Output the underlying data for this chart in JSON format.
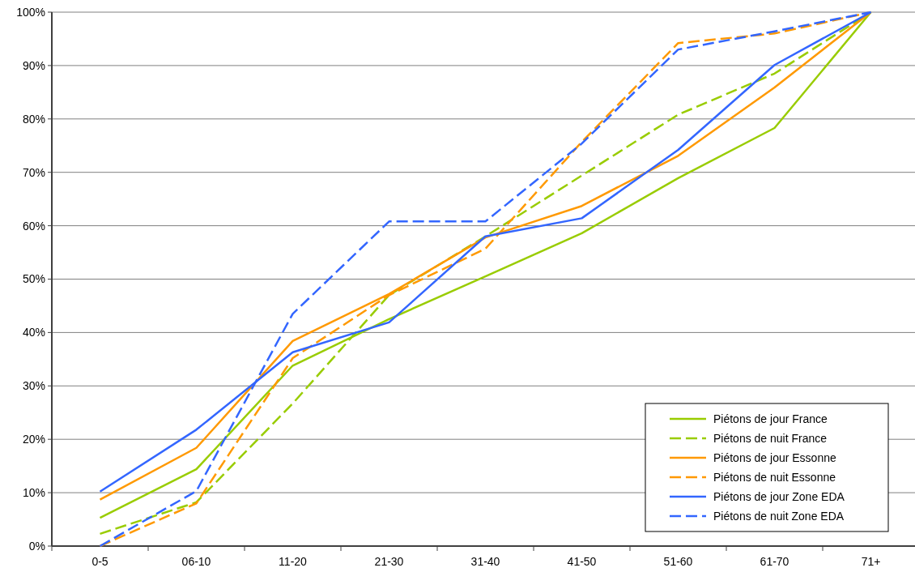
{
  "chart_data": {
    "type": "line",
    "categories": [
      "0-5",
      "06-10",
      "11-20",
      "21-30",
      "31-40",
      "41-50",
      "51-60",
      "61-70",
      "71+"
    ],
    "ylim": [
      0,
      100
    ],
    "yticks": [
      {
        "value": 0,
        "label": "0%"
      },
      {
        "value": 10,
        "label": "10%"
      },
      {
        "value": 20,
        "label": "20%"
      },
      {
        "value": 30,
        "label": "30%"
      },
      {
        "value": 40,
        "label": "40%"
      },
      {
        "value": 50,
        "label": "50%"
      },
      {
        "value": 60,
        "label": "60%"
      },
      {
        "value": 70,
        "label": "70%"
      },
      {
        "value": 80,
        "label": "80%"
      },
      {
        "value": 90,
        "label": "90%"
      },
      {
        "value": 100,
        "label": "100%"
      }
    ],
    "grid": "y",
    "legend": "bottom right",
    "marker": "none",
    "series": [
      {
        "name": "Piétons de jour France",
        "color": "#99cc00",
        "line_style": "solid",
        "values": [
          5.3,
          14.4,
          33.8,
          42.5,
          50.5,
          58.6,
          68.9,
          78.3,
          100
        ]
      },
      {
        "name": "Piétons de nuit France",
        "color": "#99cc00",
        "line_style": "dashed",
        "values": [
          2.3,
          8.2,
          26.7,
          47,
          58,
          69.4,
          80.8,
          88.5,
          100
        ]
      },
      {
        "name": "Piétons de jour Essonne",
        "color": "#ff9900",
        "line_style": "solid",
        "values": [
          8.7,
          18.4,
          38.4,
          47.2,
          57.8,
          63.7,
          73.1,
          85.9,
          100
        ]
      },
      {
        "name": "Piétons de nuit Essonne",
        "color": "#ff9900",
        "line_style": "dashed",
        "values": [
          0,
          8,
          35.2,
          47,
          55.7,
          75.7,
          94.2,
          96,
          100
        ]
      },
      {
        "name": "Piétons de jour Zone EDA",
        "color": "#3366ff",
        "line_style": "solid",
        "values": [
          10.2,
          21.8,
          36.3,
          41.9,
          58,
          61.4,
          74.2,
          90.1,
          100
        ]
      },
      {
        "name": "Piétons de nuit Zone EDA",
        "color": "#3366ff",
        "line_style": "dashed",
        "values": [
          0,
          10.3,
          43.5,
          60.8,
          60.8,
          75.4,
          93,
          96.4,
          100
        ]
      }
    ]
  }
}
